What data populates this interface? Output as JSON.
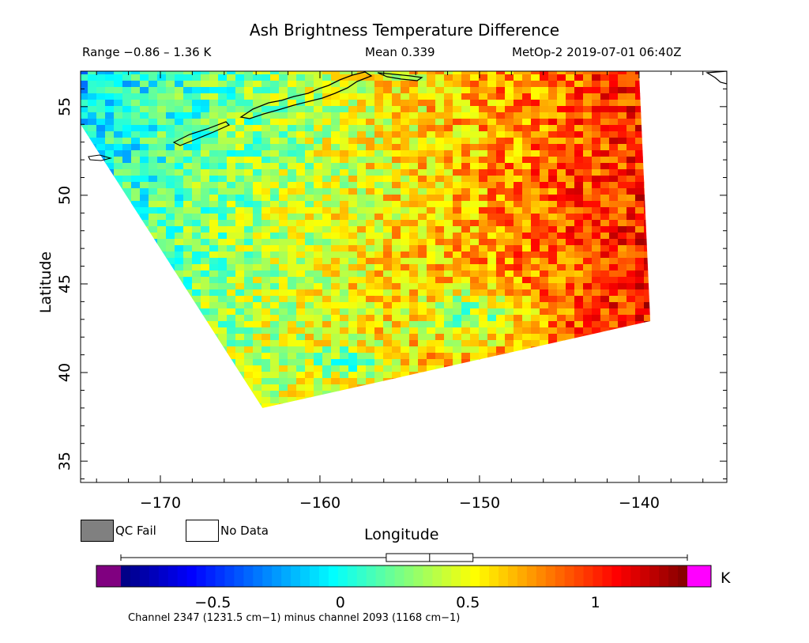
{
  "header": {
    "title": "Ash Brightness Temperature Difference",
    "range": "Range −0.86 – 1.36 K",
    "mean": "Mean 0.339",
    "source": "MetOp-2 2019-07-01 06:40Z"
  },
  "legend": {
    "qc_fail": "QC Fail",
    "no_data": "No Data",
    "qc_fail_color": "#808080",
    "no_data_color": "#ffffff"
  },
  "colorbar": {
    "unit": "K",
    "vmin": -0.86,
    "vmax": 1.36,
    "ticks": [
      "−0.5",
      "0",
      "0.5",
      "1"
    ],
    "tick_values": [
      -0.5,
      0,
      0.5,
      1
    ],
    "underflow_color": "#800080",
    "overflow_color": "#ff00ff",
    "boxplot": {
      "min": -0.86,
      "q1": 0.18,
      "median": 0.35,
      "q3": 0.52,
      "max": 1.36
    }
  },
  "footnote": "Channel 2347 (1231.5 cm−1) minus channel 2093 (1168 cm−1)",
  "chart_data": {
    "type": "heatmap",
    "title": "Ash Brightness Temperature Difference",
    "xlabel": "Longitude",
    "ylabel": "Latitude",
    "xlim": [
      -175,
      -134.5
    ],
    "ylim": [
      33.8,
      57
    ],
    "xticks": [
      -170,
      -160,
      -150,
      -140
    ],
    "xtick_labels": [
      "−170",
      "−160",
      "−150",
      "−140"
    ],
    "yticks": [
      35,
      40,
      45,
      50,
      55
    ],
    "ytick_labels": [
      "35",
      "40",
      "45",
      "50",
      "55"
    ],
    "value_range": [
      -0.86,
      1.36
    ],
    "mean": 0.339,
    "unit": "K",
    "swath_corners": [
      [
        -175,
        54
      ],
      [
        -163.6,
        38
      ],
      [
        -139.3,
        42.9
      ],
      [
        -140,
        57
      ],
      [
        -175,
        57
      ]
    ]
  }
}
